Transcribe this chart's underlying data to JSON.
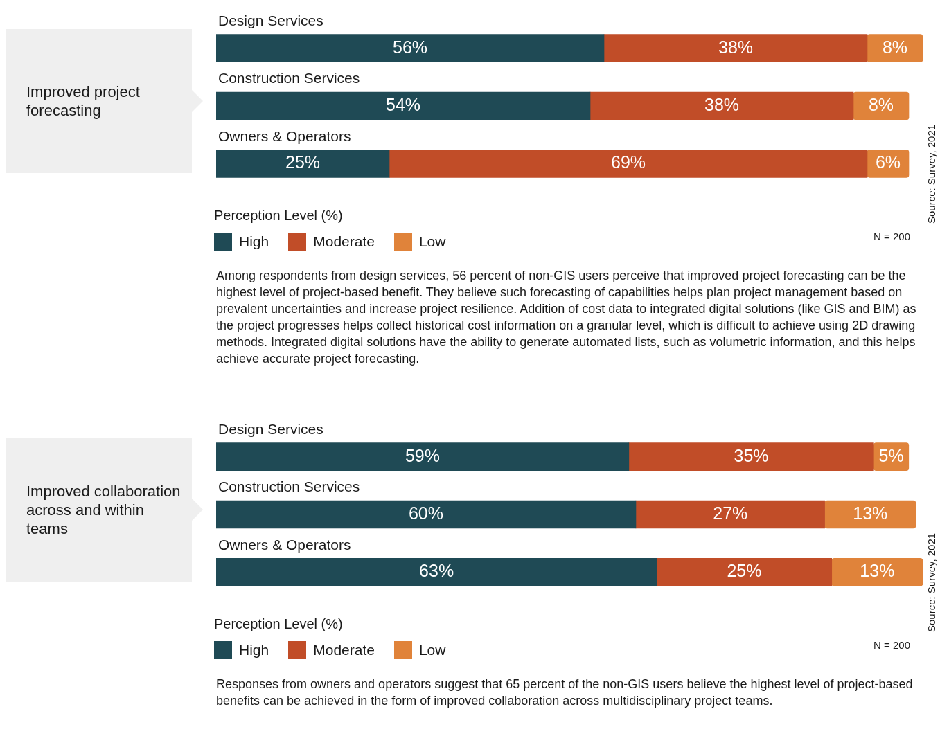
{
  "chart_data": [
    {
      "type": "bar",
      "orientation": "horizontal",
      "stacked": true,
      "title": "Improved project forecasting",
      "legend_title": "Perception Level (%)",
      "legend": "bottom",
      "tick_labels": "y",
      "categories": [
        "Design Services",
        "Construction Services",
        "Owners & Operators"
      ],
      "series": [
        {
          "name": "High",
          "color": "#1f4a55",
          "values": [
            56,
            54,
            25
          ],
          "value_labels": [
            "56%",
            "54%",
            "25%"
          ]
        },
        {
          "name": "Moderate",
          "color": "#c14d28",
          "values": [
            38,
            38,
            69
          ],
          "value_labels": [
            "38%",
            "38%",
            "69%"
          ]
        },
        {
          "name": "Low",
          "color": "#e0833a",
          "values": [
            8,
            8,
            6
          ],
          "value_labels": [
            "8%",
            "8%",
            "6%"
          ]
        }
      ],
      "annotations": [
        "N = 200",
        "Source: Survey, 2021",
        "Among respondents from design services, 56 percent of non-GIS users perceive that improved project forecasting can be the highest level of project-based benefit. They believe such forecasting of capabilities helps plan project management based on prevalent uncertainties and increase project resilience. Addition of cost data to integrated digital solutions (like GIS and BIM) as the project progresses helps collect historical cost information on a granular level, which is difficult to achieve using 2D drawing methods. Integrated digital solutions have the ability to generate automated lists, such as volumetric information, and this helps achieve accurate project forecasting."
      ]
    },
    {
      "type": "bar",
      "orientation": "horizontal",
      "stacked": true,
      "title": "Improved collaboration across and within teams",
      "legend_title": "Perception Level (%)",
      "legend": "bottom",
      "tick_labels": "y",
      "categories": [
        "Design Services",
        "Construction Services",
        "Owners & Operators"
      ],
      "series": [
        {
          "name": "High",
          "color": "#1f4a55",
          "values": [
            59,
            60,
            63
          ],
          "value_labels": [
            "59%",
            "60%",
            "63%"
          ]
        },
        {
          "name": "Moderate",
          "color": "#c14d28",
          "values": [
            35,
            27,
            25
          ],
          "value_labels": [
            "35%",
            "27%",
            "25%"
          ]
        },
        {
          "name": "Low",
          "color": "#e0833a",
          "values": [
            5,
            13,
            13
          ],
          "value_labels": [
            "5%",
            "13%",
            "13%"
          ]
        }
      ],
      "annotations": [
        "N = 200",
        "Source: Survey, 2021",
        "Responses from owners and operators suggest that 65 percent of the non-GIS users believe the highest level of project-based benefits can be achieved in the form of improved collaboration across multidisciplinary project teams."
      ]
    }
  ]
}
